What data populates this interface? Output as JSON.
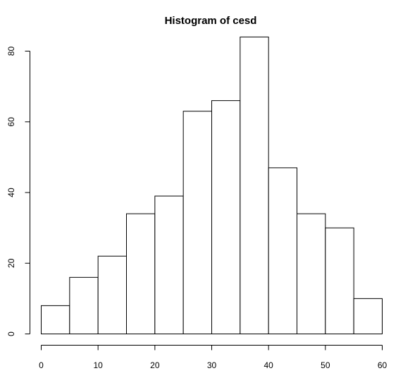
{
  "chart_data": {
    "type": "bar",
    "title": "Histogram of cesd",
    "xlabel": "",
    "ylabel": "",
    "bins": [
      {
        "from": 0,
        "to": 5,
        "count": 8
      },
      {
        "from": 5,
        "to": 10,
        "count": 16
      },
      {
        "from": 10,
        "to": 15,
        "count": 22
      },
      {
        "from": 15,
        "to": 20,
        "count": 34
      },
      {
        "from": 20,
        "to": 25,
        "count": 39
      },
      {
        "from": 25,
        "to": 30,
        "count": 63
      },
      {
        "from": 30,
        "to": 35,
        "count": 66
      },
      {
        "from": 35,
        "to": 40,
        "count": 84
      },
      {
        "from": 40,
        "to": 45,
        "count": 47
      },
      {
        "from": 45,
        "to": 50,
        "count": 34
      },
      {
        "from": 50,
        "to": 55,
        "count": 30
      },
      {
        "from": 55,
        "to": 60,
        "count": 10
      }
    ],
    "xlim": [
      0,
      60
    ],
    "ylim": [
      0,
      80
    ],
    "x_ticks": [
      "0",
      "10",
      "20",
      "30",
      "40",
      "50",
      "60"
    ],
    "y_ticks": [
      "0",
      "20",
      "40",
      "60",
      "80"
    ],
    "grid": false
  }
}
